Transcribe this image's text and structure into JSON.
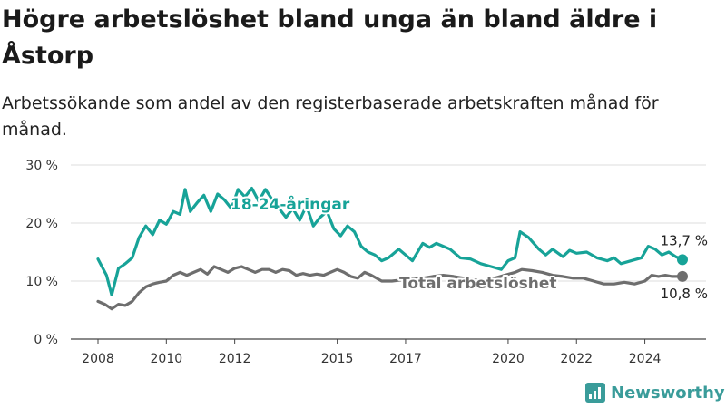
{
  "title": "Högre arbetslöshet bland unga än bland äldre i Åstorp",
  "subtitle": "Arbetssökande som andel av den registerbaserade arbetskraften månad för månad.",
  "logo": {
    "text": "Newsworthy",
    "icon": "newsworthy-logo-icon",
    "color": "#3a9c9a"
  },
  "chart_data": {
    "type": "line",
    "title": "Högre arbetslöshet bland unga än bland äldre i Åstorp",
    "subtitle": "Arbetssökande som andel av den registerbaserade arbetskraften månad för månad.",
    "ylim": [
      0,
      30
    ],
    "yticks": [
      0,
      10,
      20,
      30
    ],
    "ytick_labels": [
      "0 %",
      "10 %",
      "20 %",
      "30 %"
    ],
    "xlim": [
      2008,
      2025.4
    ],
    "xticks": [
      2008,
      2010,
      2012,
      2015,
      2017,
      2020,
      2022,
      2024
    ],
    "xtick_labels": [
      "2008",
      "2010",
      "2012",
      "2015",
      "2017",
      "2020",
      "2022",
      "2024"
    ],
    "grid": true,
    "series": [
      {
        "name": "18-24-åringar",
        "color": "#17a398",
        "end_label": "13,7 %",
        "points": [
          [
            2008.0,
            13.8
          ],
          [
            2008.25,
            11.0
          ],
          [
            2008.4,
            7.6
          ],
          [
            2008.6,
            12.2
          ],
          [
            2008.8,
            13.0
          ],
          [
            2009.0,
            14.0
          ],
          [
            2009.2,
            17.5
          ],
          [
            2009.4,
            19.5
          ],
          [
            2009.6,
            18.0
          ],
          [
            2009.8,
            20.5
          ],
          [
            2010.0,
            19.8
          ],
          [
            2010.2,
            22.0
          ],
          [
            2010.4,
            21.5
          ],
          [
            2010.55,
            25.8
          ],
          [
            2010.7,
            22.0
          ],
          [
            2010.9,
            23.5
          ],
          [
            2011.1,
            24.8
          ],
          [
            2011.3,
            22.0
          ],
          [
            2011.5,
            25.0
          ],
          [
            2011.7,
            24.0
          ],
          [
            2011.9,
            22.5
          ],
          [
            2012.1,
            25.8
          ],
          [
            2012.3,
            24.5
          ],
          [
            2012.5,
            26.0
          ],
          [
            2012.7,
            23.8
          ],
          [
            2012.9,
            25.8
          ],
          [
            2013.1,
            24.0
          ],
          [
            2013.3,
            22.5
          ],
          [
            2013.5,
            21.0
          ],
          [
            2013.7,
            22.5
          ],
          [
            2013.9,
            20.5
          ],
          [
            2014.1,
            23.0
          ],
          [
            2014.3,
            19.5
          ],
          [
            2014.5,
            21.0
          ],
          [
            2014.7,
            22.0
          ],
          [
            2014.9,
            19.0
          ],
          [
            2015.1,
            17.8
          ],
          [
            2015.3,
            19.5
          ],
          [
            2015.5,
            18.5
          ],
          [
            2015.7,
            16.0
          ],
          [
            2015.9,
            15.0
          ],
          [
            2016.1,
            14.5
          ],
          [
            2016.3,
            13.5
          ],
          [
            2016.5,
            14.0
          ],
          [
            2016.8,
            15.5
          ],
          [
            2017.0,
            14.5
          ],
          [
            2017.2,
            13.5
          ],
          [
            2017.5,
            16.5
          ],
          [
            2017.7,
            15.8
          ],
          [
            2017.9,
            16.5
          ],
          [
            2018.1,
            16.0
          ],
          [
            2018.3,
            15.5
          ],
          [
            2018.6,
            14.0
          ],
          [
            2018.9,
            13.8
          ],
          [
            2019.2,
            13.0
          ],
          [
            2019.5,
            12.5
          ],
          [
            2019.8,
            12.0
          ],
          [
            2020.0,
            13.5
          ],
          [
            2020.2,
            14.0
          ],
          [
            2020.35,
            18.5
          ],
          [
            2020.6,
            17.5
          ],
          [
            2020.9,
            15.5
          ],
          [
            2021.1,
            14.5
          ],
          [
            2021.3,
            15.5
          ],
          [
            2021.6,
            14.2
          ],
          [
            2021.8,
            15.3
          ],
          [
            2022.0,
            14.8
          ],
          [
            2022.3,
            15.0
          ],
          [
            2022.6,
            14.0
          ],
          [
            2022.9,
            13.5
          ],
          [
            2023.1,
            14.0
          ],
          [
            2023.3,
            13.0
          ],
          [
            2023.6,
            13.5
          ],
          [
            2023.9,
            14.0
          ],
          [
            2024.1,
            16.0
          ],
          [
            2024.3,
            15.5
          ],
          [
            2024.5,
            14.5
          ],
          [
            2024.7,
            15.0
          ],
          [
            2024.9,
            14.2
          ],
          [
            2025.1,
            13.7
          ]
        ]
      },
      {
        "name": "Total arbetslöshet",
        "color": "#6e6e6e",
        "end_label": "10,8 %",
        "points": [
          [
            2008.0,
            6.5
          ],
          [
            2008.2,
            6.0
          ],
          [
            2008.4,
            5.2
          ],
          [
            2008.6,
            6.0
          ],
          [
            2008.8,
            5.8
          ],
          [
            2009.0,
            6.5
          ],
          [
            2009.2,
            8.0
          ],
          [
            2009.4,
            9.0
          ],
          [
            2009.6,
            9.5
          ],
          [
            2009.8,
            9.8
          ],
          [
            2010.0,
            10.0
          ],
          [
            2010.2,
            11.0
          ],
          [
            2010.4,
            11.5
          ],
          [
            2010.6,
            11.0
          ],
          [
            2010.8,
            11.5
          ],
          [
            2011.0,
            12.0
          ],
          [
            2011.2,
            11.2
          ],
          [
            2011.4,
            12.5
          ],
          [
            2011.6,
            12.0
          ],
          [
            2011.8,
            11.5
          ],
          [
            2012.0,
            12.2
          ],
          [
            2012.2,
            12.5
          ],
          [
            2012.4,
            12.0
          ],
          [
            2012.6,
            11.5
          ],
          [
            2012.8,
            12.0
          ],
          [
            2013.0,
            12.0
          ],
          [
            2013.2,
            11.5
          ],
          [
            2013.4,
            12.0
          ],
          [
            2013.6,
            11.8
          ],
          [
            2013.8,
            11.0
          ],
          [
            2014.0,
            11.3
          ],
          [
            2014.2,
            11.0
          ],
          [
            2014.4,
            11.2
          ],
          [
            2014.6,
            11.0
          ],
          [
            2014.8,
            11.5
          ],
          [
            2015.0,
            12.0
          ],
          [
            2015.2,
            11.5
          ],
          [
            2015.4,
            10.8
          ],
          [
            2015.6,
            10.5
          ],
          [
            2015.8,
            11.5
          ],
          [
            2016.0,
            11.0
          ],
          [
            2016.3,
            10.0
          ],
          [
            2016.6,
            10.0
          ],
          [
            2016.9,
            10.2
          ],
          [
            2017.2,
            10.5
          ],
          [
            2017.5,
            10.5
          ],
          [
            2017.8,
            10.8
          ],
          [
            2018.1,
            11.0
          ],
          [
            2018.4,
            10.8
          ],
          [
            2018.7,
            10.5
          ],
          [
            2019.0,
            10.2
          ],
          [
            2019.3,
            10.0
          ],
          [
            2019.6,
            10.5
          ],
          [
            2019.9,
            11.0
          ],
          [
            2020.2,
            11.5
          ],
          [
            2020.4,
            12.0
          ],
          [
            2020.7,
            11.8
          ],
          [
            2021.0,
            11.5
          ],
          [
            2021.3,
            11.0
          ],
          [
            2021.6,
            10.8
          ],
          [
            2021.9,
            10.5
          ],
          [
            2022.2,
            10.5
          ],
          [
            2022.5,
            10.0
          ],
          [
            2022.8,
            9.5
          ],
          [
            2023.1,
            9.5
          ],
          [
            2023.4,
            9.8
          ],
          [
            2023.7,
            9.5
          ],
          [
            2024.0,
            10.0
          ],
          [
            2024.2,
            11.0
          ],
          [
            2024.4,
            10.8
          ],
          [
            2024.6,
            11.0
          ],
          [
            2024.8,
            10.8
          ],
          [
            2025.1,
            10.8
          ]
        ]
      }
    ],
    "annotations": [
      {
        "text": "18-24-åringar",
        "series": 0
      },
      {
        "text": "Total arbetslöshet",
        "series": 1
      }
    ]
  }
}
